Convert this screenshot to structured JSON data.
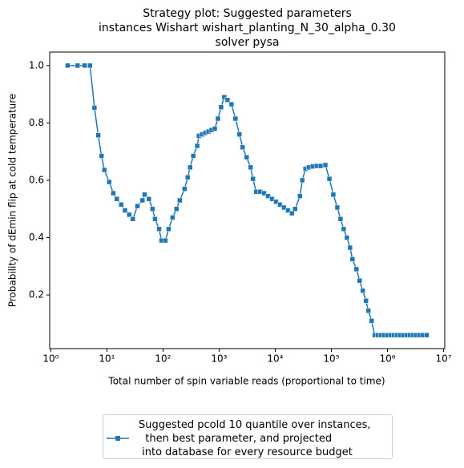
{
  "chart_data": {
    "type": "line",
    "title": "Strategy plot: Suggested parameters\ninstances Wishart wishart_planting_N_30_alpha_0.30\nsolver pysa",
    "xlabel": "Total number of spin variable reads (proportional to time)",
    "ylabel": "Probability of dEmin flip at cold temperature",
    "x": [
      2,
      3,
      4,
      5,
      6,
      7,
      8,
      9,
      11,
      13,
      15,
      18,
      21,
      25,
      29,
      35,
      43,
      47,
      56,
      65,
      72,
      85,
      94,
      110,
      126,
      148,
      174,
      199,
      242,
      275,
      304,
      346,
      407,
      435,
      495,
      565,
      644,
      733,
      836,
      953,
      1085,
      1236,
      1409,
      1660,
      1954,
      2301,
      2620,
      3085,
      3632,
      4009,
      4570,
      5375,
      6325,
      7450,
      8770,
      10330,
      12160,
      14320,
      16870,
      19860,
      22630,
      27540,
      30340,
      34590,
      39450,
      46450,
      54700,
      64400,
      78300,
      92200,
      108400,
      127700,
      145600,
      166000,
      189200,
      215500,
      237700,
      280000,
      319000,
      363000,
      414000,
      457000,
      520000,
      593000,
      676000,
      771000,
      877000,
      1000000,
      1140000,
      1298000,
      1480000,
      1687000,
      1923000,
      2190000,
      2495000,
      2844000,
      3243000,
      3690000,
      4207000,
      5000000
    ],
    "series": [
      {
        "name": "Suggested pcold 10 quantile over instances,\n  then best parameter, and projected\n into database for every resource budget",
        "color": "#1f77b4",
        "values": [
          1.0,
          1.0,
          1.0,
          1.0,
          0.853,
          0.757,
          0.685,
          0.636,
          0.594,
          0.555,
          0.535,
          0.515,
          0.495,
          0.48,
          0.465,
          0.51,
          0.53,
          0.55,
          0.535,
          0.5,
          0.465,
          0.43,
          0.39,
          0.39,
          0.43,
          0.47,
          0.5,
          0.53,
          0.57,
          0.61,
          0.645,
          0.685,
          0.72,
          0.755,
          0.76,
          0.765,
          0.77,
          0.775,
          0.78,
          0.815,
          0.855,
          0.89,
          0.88,
          0.865,
          0.815,
          0.76,
          0.715,
          0.68,
          0.645,
          0.605,
          0.56,
          0.56,
          0.555,
          0.545,
          0.535,
          0.525,
          0.515,
          0.505,
          0.495,
          0.485,
          0.5,
          0.545,
          0.6,
          0.64,
          0.645,
          0.648,
          0.65,
          0.65,
          0.653,
          0.605,
          0.55,
          0.505,
          0.465,
          0.43,
          0.4,
          0.365,
          0.325,
          0.29,
          0.25,
          0.215,
          0.18,
          0.145,
          0.11,
          0.06,
          0.06,
          0.06,
          0.06,
          0.06,
          0.06,
          0.06,
          0.06,
          0.06,
          0.06,
          0.06,
          0.06,
          0.06,
          0.06,
          0.06,
          0.06,
          0.06
        ]
      }
    ],
    "xscale": "log",
    "xlim": [
      0.955,
      10500000
    ],
    "xticks": [
      {
        "value": 1,
        "label": "10⁰"
      },
      {
        "value": 10,
        "label": "10¹"
      },
      {
        "value": 100,
        "label": "10²"
      },
      {
        "value": 1000,
        "label": "10³"
      },
      {
        "value": 10000,
        "label": "10⁴"
      },
      {
        "value": 100000,
        "label": "10⁵"
      },
      {
        "value": 1000000,
        "label": "10⁶"
      },
      {
        "value": 10000000,
        "label": "10⁷"
      }
    ],
    "ylim": [
      0.013,
      1.047
    ],
    "yticks": [
      0.2,
      0.4,
      0.6,
      0.8,
      {
        "value": 1,
        "label": "1.0"
      }
    ],
    "marker": "square",
    "legend": "lower center"
  }
}
